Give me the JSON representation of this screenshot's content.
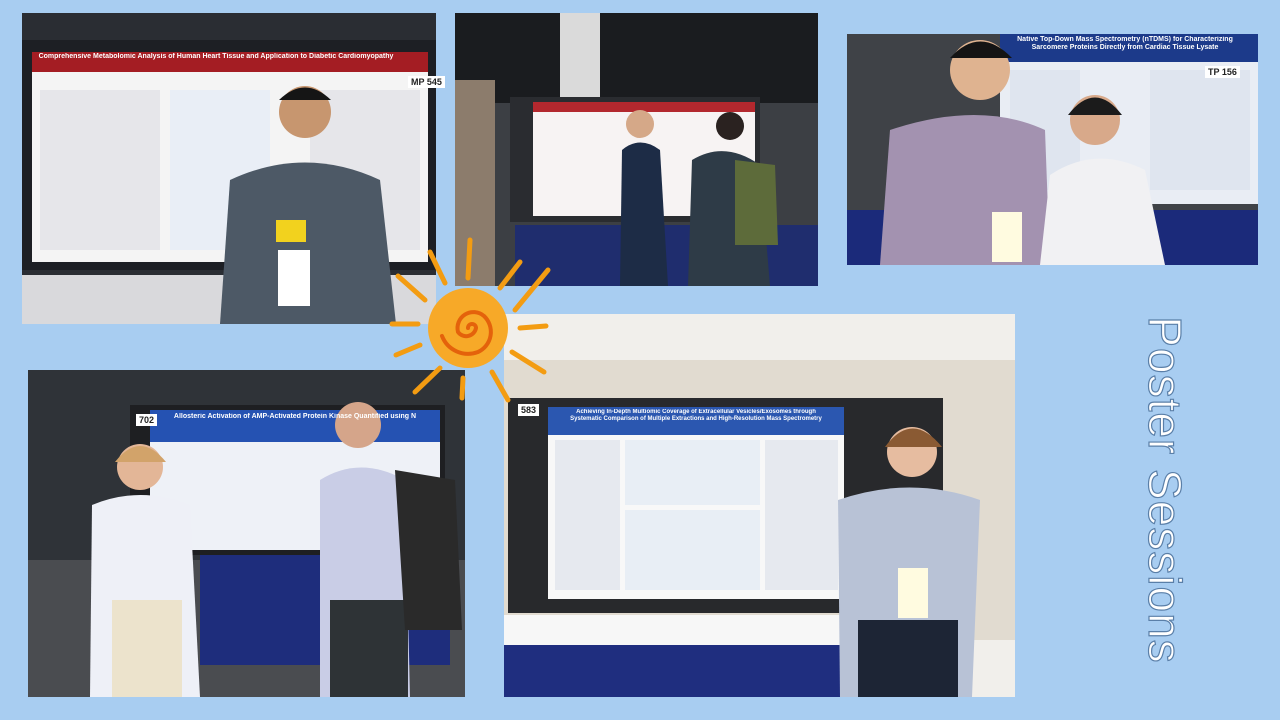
{
  "slide": {
    "title": "Poster Sessions"
  },
  "photos": [
    {
      "poster_title": "Comprehensive Metabolomic Analysis of Human Heart Tissue and Application to Diabetic Cardiomyopathy",
      "poster_number": "MP 545"
    },
    {
      "poster_title": "Native Top-Down Mass Spectrometry (nTDMS) for Characterizing Sarcomere Proteins Directly from Cardiac Tissue Lysate",
      "poster_number": "TP 156"
    },
    {
      "poster_title": "Allosteric Activation of AMP-Activated Protein Kinase Quantified using N",
      "poster_number": "702"
    },
    {
      "poster_title": "Achieving In-Depth Multiomic Coverage of Extracellular Vesicles/Exosomes through Systematic Comparison of Multiple Extractions and High-Resolution Mass Spectrometry",
      "poster_number": "583"
    }
  ]
}
